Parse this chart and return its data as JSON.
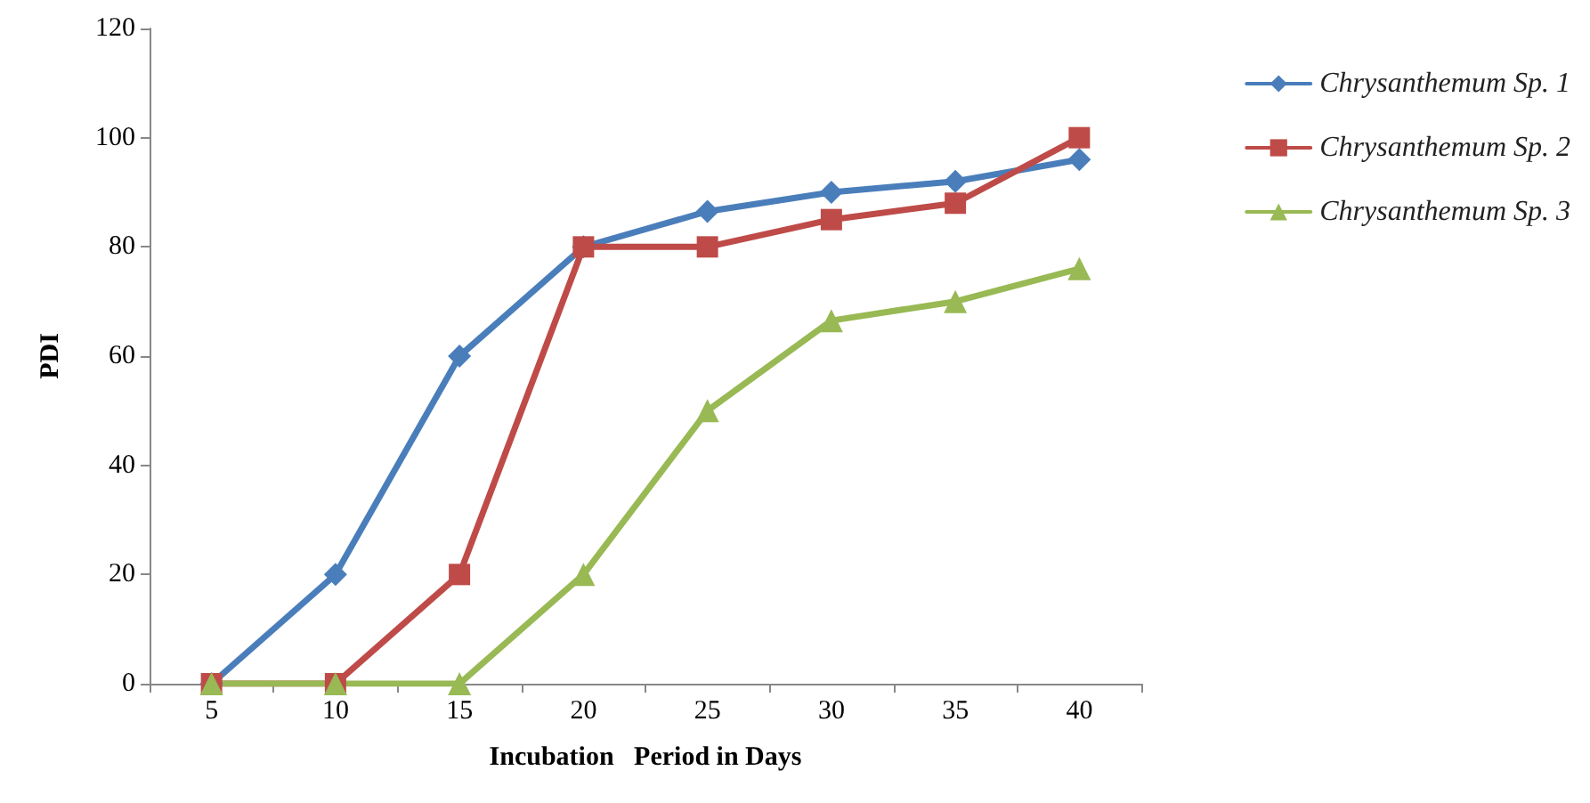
{
  "chart_data": {
    "type": "line",
    "xlabel": "Incubation   Period in Days",
    "ylabel": "PDI",
    "categories": [
      "5",
      "10",
      "15",
      "20",
      "25",
      "30",
      "35",
      "40"
    ],
    "series": [
      {
        "name": "Chrysanthemum Sp. 1",
        "color": "#4a7ebb",
        "marker": "diamond",
        "values": [
          0,
          20,
          60,
          80,
          86.5,
          90,
          92,
          96
        ]
      },
      {
        "name": "Chrysanthemum Sp. 2",
        "color": "#be4b48",
        "marker": "square",
        "values": [
          0,
          0,
          20,
          80,
          80,
          85,
          88,
          100
        ]
      },
      {
        "name": "Chrysanthemum Sp. 3",
        "color": "#98b954",
        "marker": "triangle",
        "values": [
          0,
          0,
          0,
          20,
          50,
          66.5,
          70,
          76
        ]
      }
    ],
    "ylim": [
      0,
      120
    ],
    "yticks": [
      0,
      20,
      40,
      60,
      80,
      100,
      120
    ],
    "grid": false,
    "legend": "right",
    "line_style": "solid"
  }
}
